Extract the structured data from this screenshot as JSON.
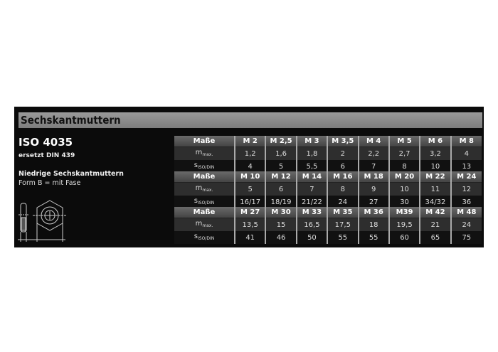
{
  "title": "Sechskantmuttern",
  "standard": "ISO 4035",
  "replaces": "ersetzt DIN 439",
  "description": "Niedrige Sechskantmuttern",
  "form": "Form B = mit Fase",
  "row_labels": {
    "header": "Maße",
    "m": "m",
    "m_sub": "max.",
    "s": "s",
    "s_sub": "ISO/DIN"
  },
  "tables": [
    {
      "sizes": [
        "M 2",
        "M 2,5",
        "M 3",
        "M 3,5",
        "M 4",
        "M 5",
        "M 6",
        "M 8"
      ],
      "m": [
        "1,2",
        "1,6",
        "1,8",
        "2",
        "2,2",
        "2,7",
        "3,2",
        "4"
      ],
      "s": [
        "4",
        "5",
        "5,5",
        "6",
        "7",
        "8",
        "10",
        "13"
      ]
    },
    {
      "sizes": [
        "M 10",
        "M 12",
        "M 14",
        "M 16",
        "M 18",
        "M 20",
        "M 22",
        "M 24"
      ],
      "m": [
        "5",
        "6",
        "7",
        "8",
        "9",
        "10",
        "11",
        "12"
      ],
      "s": [
        "16/17",
        "18/19",
        "21/22",
        "24",
        "27",
        "30",
        "34/32",
        "36"
      ]
    },
    {
      "sizes": [
        "M 27",
        "M 30",
        "M 33",
        "M 35",
        "M 36",
        "M39",
        "M 42",
        "M 48"
      ],
      "m": [
        "13,5",
        "15",
        "16,5",
        "17,5",
        "18",
        "19,5",
        "21",
        "24"
      ],
      "s": [
        "41",
        "46",
        "50",
        "55",
        "55",
        "60",
        "65",
        "75"
      ]
    }
  ]
}
